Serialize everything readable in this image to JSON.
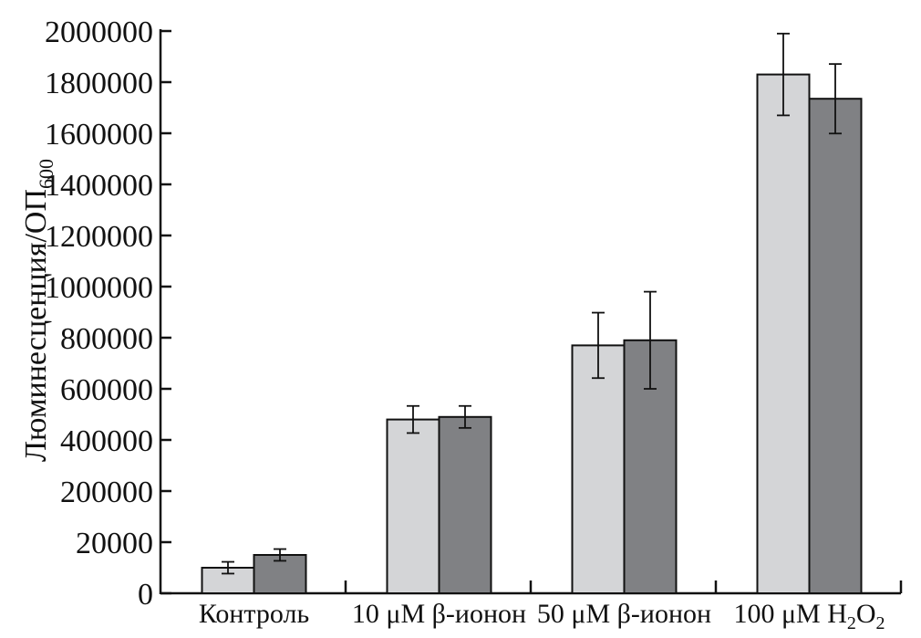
{
  "chart_data": {
    "type": "bar",
    "ylabel": "Люминесценция/ОП",
    "ylabel_subscript": "600",
    "y_tick_labels": [
      "0",
      "20000",
      "200000",
      "400000",
      "600000",
      "800000",
      "1000000",
      "1200000",
      "1400000",
      "1600000",
      "1800000",
      "2000000"
    ],
    "y_tick_values": [
      0,
      20000,
      200000,
      400000,
      600000,
      800000,
      1000000,
      1200000,
      1400000,
      1600000,
      1800000,
      2000000
    ],
    "categories": [
      "Контроль",
      "10 μM β-ионон",
      "50 μM β-ионон",
      "100 μM H2O2"
    ],
    "category_labels": [
      {
        "main": "Контроль"
      },
      {
        "main": "10 μM β-ионон"
      },
      {
        "main": "50 μM β-ионон"
      },
      {
        "main": "100 μM H",
        "sub1": "2",
        "mid": "O",
        "sub2": "2"
      }
    ],
    "series": [
      {
        "color": "#d4d5d7",
        "values": [
          10000,
          480000,
          770000,
          1830000
        ],
        "errors": [
          2300,
          53000,
          128000,
          160000
        ]
      },
      {
        "color": "#808184",
        "values": [
          15000,
          490000,
          790000,
          1735000
        ],
        "errors": [
          2300,
          43000,
          190000,
          136000
        ]
      }
    ],
    "grid": false,
    "legend": "none"
  }
}
